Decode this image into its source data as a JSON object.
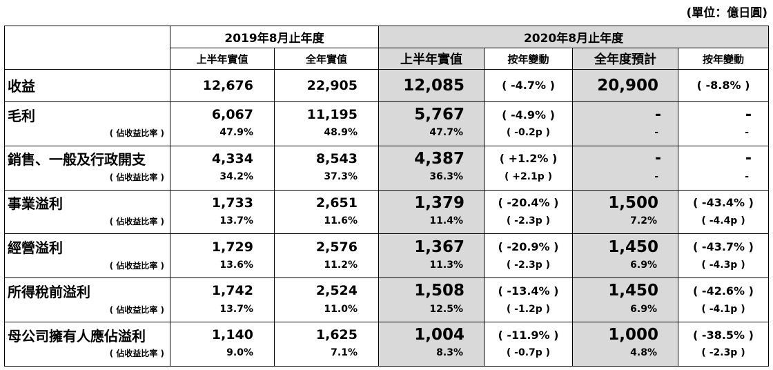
{
  "unit_note": "(單位：億日圓)",
  "header": {
    "fy2019": "2019年8月止年度",
    "fy2020": "2020年8月止年度",
    "fy2019_cols": [
      "上半年實值",
      "全年實值"
    ],
    "fy2020_cols": [
      "上半年實值",
      "按年變動",
      "全年度預計",
      "按年變動"
    ]
  },
  "rows": [
    {
      "label": "收益",
      "h1_2019": "12,676",
      "fy_2019": "22,905",
      "h1_2020": "12,085",
      "yoy_h1": "( -4.7% )",
      "fy_fc": "20,900",
      "yoy_fy": "( -8.8% )"
    },
    {
      "label": "毛利",
      "h1_2019": "6,067",
      "fy_2019": "11,195",
      "h1_2020": "5,767",
      "yoy_h1": "( -4.9% )",
      "fy_fc": "-",
      "yoy_fy": "-",
      "sub": {
        "label": "( 佔收益比率 )",
        "h1_2019": "47.9%",
        "fy_2019": "48.9%",
        "h1_2020": "47.7%",
        "yoy_h1": "( -0.2p )",
        "fy_fc": "-",
        "yoy_fy": "-"
      }
    },
    {
      "label": "銷售、一般及行政開支",
      "h1_2019": "4,334",
      "fy_2019": "8,543",
      "h1_2020": "4,387",
      "yoy_h1": "( +1.2% )",
      "fy_fc": "-",
      "yoy_fy": "-",
      "sub": {
        "label": "( 佔收益比率 )",
        "h1_2019": "34.2%",
        "fy_2019": "37.3%",
        "h1_2020": "36.3%",
        "yoy_h1": "( +2.1p )",
        "fy_fc": "-",
        "yoy_fy": "-"
      }
    },
    {
      "label": "事業溢利",
      "h1_2019": "1,733",
      "fy_2019": "2,651",
      "h1_2020": "1,379",
      "yoy_h1": "( -20.4% )",
      "fy_fc": "1,500",
      "yoy_fy": "( -43.4% )",
      "sub": {
        "label": "( 佔收益比率 )",
        "h1_2019": "13.7%",
        "fy_2019": "11.6%",
        "h1_2020": "11.4%",
        "yoy_h1": "( -2.3p )",
        "fy_fc": "7.2%",
        "yoy_fy": "( -4.4p )"
      }
    },
    {
      "label": "經營溢利",
      "h1_2019": "1,729",
      "fy_2019": "2,576",
      "h1_2020": "1,367",
      "yoy_h1": "( -20.9% )",
      "fy_fc": "1,450",
      "yoy_fy": "( -43.7% )",
      "sub": {
        "label": "( 佔收益比率 )",
        "h1_2019": "13.6%",
        "fy_2019": "11.2%",
        "h1_2020": "11.3%",
        "yoy_h1": "( -2.3p )",
        "fy_fc": "6.9%",
        "yoy_fy": "( -4.3p )"
      }
    },
    {
      "label": "所得稅前溢利",
      "h1_2019": "1,742",
      "fy_2019": "2,524",
      "h1_2020": "1,508",
      "yoy_h1": "( -13.4% )",
      "fy_fc": "1,450",
      "yoy_fy": "( -42.6% )",
      "sub": {
        "label": "( 佔收益比率 )",
        "h1_2019": "13.7%",
        "fy_2019": "11.0%",
        "h1_2020": "12.5%",
        "yoy_h1": "( -1.2p )",
        "fy_fc": "6.9%",
        "yoy_fy": "( -4.1p )"
      }
    },
    {
      "label": "母公司擁有人應佔溢利",
      "h1_2019": "1,140",
      "fy_2019": "1,625",
      "h1_2020": "1,004",
      "yoy_h1": "( -11.9% )",
      "fy_fc": "1,000",
      "yoy_fy": "( -38.5% )",
      "sub": {
        "label": "( 佔收益比率 )",
        "h1_2019": "9.0%",
        "fy_2019": "7.1%",
        "h1_2020": "8.3%",
        "yoy_h1": "( -0.7p )",
        "fy_fc": "4.8%",
        "yoy_fy": "( -2.3p )"
      }
    }
  ]
}
